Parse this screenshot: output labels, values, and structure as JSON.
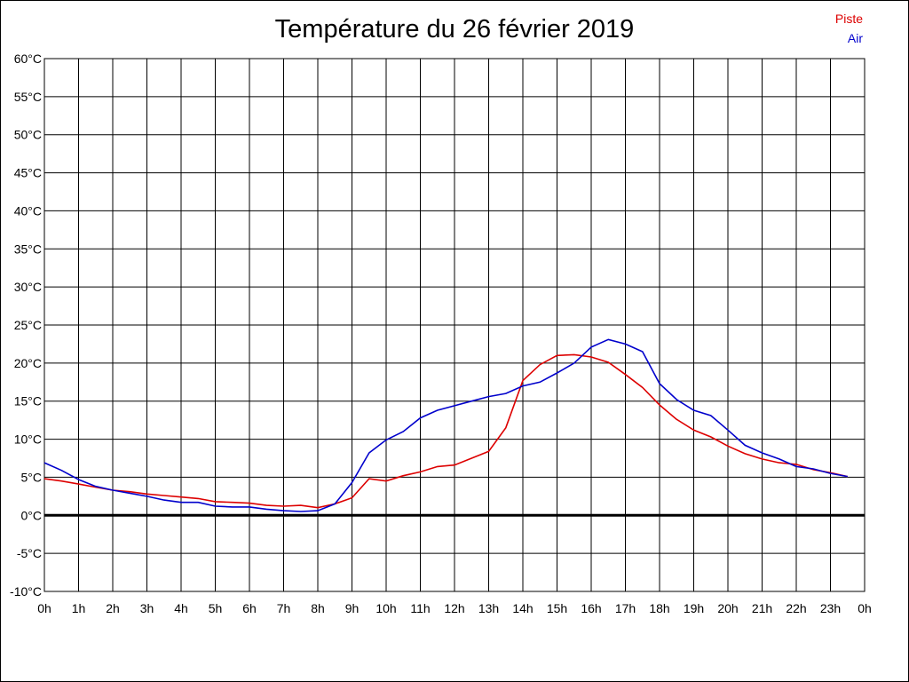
{
  "chart_data": {
    "type": "line",
    "title": "Température du 26 février 2019",
    "xlabel": "",
    "ylabel": "",
    "xlim": [
      0,
      24
    ],
    "ylim": [
      -10,
      60
    ],
    "grid": true,
    "legend": "top-right",
    "x_ticks": [
      "0h",
      "1h",
      "2h",
      "3h",
      "4h",
      "5h",
      "6h",
      "7h",
      "8h",
      "9h",
      "10h",
      "11h",
      "12h",
      "13h",
      "14h",
      "15h",
      "16h",
      "17h",
      "18h",
      "19h",
      "20h",
      "21h",
      "22h",
      "23h",
      "0h"
    ],
    "y_ticks": [
      "-10°C",
      "-5°C",
      "0°C",
      "5°C",
      "10°C",
      "15°C",
      "20°C",
      "25°C",
      "30°C",
      "35°C",
      "40°C",
      "45°C",
      "50°C",
      "55°C",
      "60°C"
    ],
    "y_tick_values": [
      -10,
      -5,
      0,
      5,
      10,
      15,
      20,
      25,
      30,
      35,
      40,
      45,
      50,
      55,
      60
    ],
    "series": [
      {
        "name": "Piste",
        "color": "#dd0000",
        "x": [
          0,
          0.5,
          1,
          1.5,
          2,
          2.5,
          3,
          3.5,
          4,
          4.5,
          5,
          5.5,
          6,
          6.5,
          7,
          7.5,
          8,
          8.5,
          9,
          9.5,
          10,
          10.5,
          11,
          11.5,
          12,
          12.5,
          13,
          13.5,
          14,
          14.5,
          15,
          15.5,
          16,
          16.5,
          17,
          17.5,
          18,
          18.5,
          19,
          19.5,
          20,
          20.5,
          21,
          21.5,
          22,
          22.5,
          23,
          23.5
        ],
        "y": [
          4.8,
          4.5,
          4.1,
          3.7,
          3.3,
          3.1,
          2.8,
          2.6,
          2.4,
          2.2,
          1.8,
          1.7,
          1.6,
          1.3,
          1.2,
          1.3,
          1.0,
          1.5,
          2.3,
          4.8,
          4.5,
          5.2,
          5.7,
          6.4,
          6.6,
          7.5,
          8.4,
          11.5,
          17.7,
          19.8,
          21.0,
          21.1,
          20.8,
          20.1,
          18.5,
          16.8,
          14.5,
          12.6,
          11.2,
          10.3,
          9.1,
          8.1,
          7.4,
          6.9,
          6.7,
          6.0,
          5.6,
          5.1
        ]
      },
      {
        "name": "Air",
        "color": "#0000cc",
        "x": [
          0,
          0.5,
          1,
          1.5,
          2,
          2.5,
          3,
          3.5,
          4,
          4.5,
          5,
          5.5,
          6,
          6.5,
          7,
          7.5,
          8,
          8.5,
          9,
          9.5,
          10,
          10.5,
          11,
          11.5,
          12,
          12.5,
          13,
          13.5,
          14,
          14.5,
          15,
          15.5,
          16,
          16.5,
          17,
          17.5,
          18,
          18.5,
          19,
          19.5,
          20,
          20.5,
          21,
          21.5,
          22,
          22.5,
          23,
          23.5
        ],
        "y": [
          6.9,
          5.9,
          4.7,
          3.8,
          3.3,
          2.9,
          2.5,
          2.0,
          1.7,
          1.7,
          1.2,
          1.1,
          1.1,
          0.8,
          0.6,
          0.5,
          0.6,
          1.5,
          4.3,
          8.2,
          9.9,
          11.0,
          12.8,
          13.8,
          14.4,
          15.0,
          15.6,
          16.0,
          17.0,
          17.5,
          18.7,
          20.0,
          22.1,
          23.1,
          22.5,
          21.5,
          17.3,
          15.2,
          13.8,
          13.1,
          11.2,
          9.2,
          8.2,
          7.4,
          6.4,
          6.1,
          5.5,
          5.1
        ]
      }
    ]
  }
}
